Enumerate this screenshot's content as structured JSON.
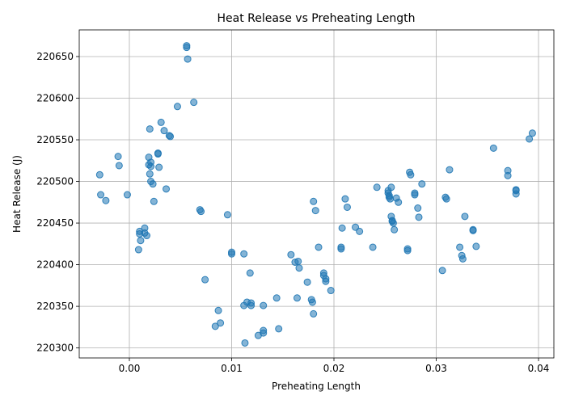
{
  "chart_data": {
    "type": "scatter",
    "title": "Heat Release vs Preheating Length",
    "xlabel": "Preheating Length",
    "ylabel": "Heat Release (J)",
    "xlim": [
      -0.0049,
      0.0415
    ],
    "ylim": [
      220288,
      220682
    ],
    "xticks": [
      0.0,
      0.01,
      0.02,
      0.03,
      0.04
    ],
    "xtick_labels": [
      "0.00",
      "0.01",
      "0.02",
      "0.03",
      "0.04"
    ],
    "yticks": [
      220300,
      220350,
      220400,
      220450,
      220500,
      220550,
      220600,
      220650
    ],
    "ytick_labels": [
      "220300",
      "220350",
      "220400",
      "220450",
      "220500",
      "220550",
      "220600",
      "220650"
    ],
    "grid": true,
    "color": "#1f77b4",
    "points": [
      [
        0.0056,
        220663
      ],
      [
        0.0056,
        220661
      ],
      [
        0.0057,
        220647
      ],
      [
        0.0063,
        220595
      ],
      [
        0.0047,
        220590
      ],
      [
        0.0031,
        220571
      ],
      [
        0.002,
        220563
      ],
      [
        0.0034,
        220561
      ],
      [
        0.0039,
        220555
      ],
      [
        0.004,
        220554
      ],
      [
        0.0028,
        220534
      ],
      [
        0.0028,
        220533
      ],
      [
        -0.0011,
        220530
      ],
      [
        0.0019,
        220529
      ],
      [
        -0.001,
        220519
      ],
      [
        0.0019,
        220520
      ],
      [
        0.0021,
        220518
      ],
      [
        0.0021,
        220523
      ],
      [
        0.0029,
        220517
      ],
      [
        -0.0029,
        220508
      ],
      [
        0.002,
        220509
      ],
      [
        0.0021,
        220500
      ],
      [
        0.0023,
        220497
      ],
      [
        0.0036,
        220491
      ],
      [
        -0.0028,
        220484
      ],
      [
        -0.0002,
        220484
      ],
      [
        -0.0023,
        220477
      ],
      [
        0.0024,
        220476
      ],
      [
        0.001,
        220440
      ],
      [
        0.001,
        220437
      ],
      [
        0.0015,
        220444
      ],
      [
        0.0015,
        220438
      ],
      [
        0.0017,
        220435
      ],
      [
        0.0011,
        220429
      ],
      [
        0.0009,
        220418
      ],
      [
        0.0069,
        220466
      ],
      [
        0.007,
        220464
      ],
      [
        0.0096,
        220460
      ],
      [
        0.01,
        220415
      ],
      [
        0.01,
        220413
      ],
      [
        0.0112,
        220413
      ],
      [
        0.0074,
        220382
      ],
      [
        0.0118,
        220390
      ],
      [
        0.0087,
        220345
      ],
      [
        0.0089,
        220330
      ],
      [
        0.0084,
        220326
      ],
      [
        0.0115,
        220355
      ],
      [
        0.0112,
        220351
      ],
      [
        0.0119,
        220351
      ],
      [
        0.0119,
        220354
      ],
      [
        0.0131,
        220351
      ],
      [
        0.0131,
        220321
      ],
      [
        0.0131,
        220318
      ],
      [
        0.0126,
        220315
      ],
      [
        0.0113,
        220306
      ],
      [
        0.0146,
        220323
      ],
      [
        0.0144,
        220360
      ],
      [
        0.0158,
        220412
      ],
      [
        0.0162,
        220403
      ],
      [
        0.0165,
        220404
      ],
      [
        0.0166,
        220396
      ],
      [
        0.0164,
        220360
      ],
      [
        0.0174,
        220379
      ],
      [
        0.0178,
        220358
      ],
      [
        0.0179,
        220355
      ],
      [
        0.018,
        220341
      ],
      [
        0.018,
        220476
      ],
      [
        0.0182,
        220465
      ],
      [
        0.0185,
        220421
      ],
      [
        0.019,
        220390
      ],
      [
        0.019,
        220387
      ],
      [
        0.0192,
        220383
      ],
      [
        0.0192,
        220380
      ],
      [
        0.0197,
        220369
      ],
      [
        0.0207,
        220421
      ],
      [
        0.0207,
        220419
      ],
      [
        0.0208,
        220444
      ],
      [
        0.0211,
        220479
      ],
      [
        0.0213,
        220469
      ],
      [
        0.0221,
        220445
      ],
      [
        0.0225,
        220440
      ],
      [
        0.0238,
        220421
      ],
      [
        0.0242,
        220493
      ],
      [
        0.0253,
        220489
      ],
      [
        0.0253,
        220486
      ],
      [
        0.0254,
        220483
      ],
      [
        0.0254,
        220481
      ],
      [
        0.0255,
        220479
      ],
      [
        0.0256,
        220493
      ],
      [
        0.0256,
        220458
      ],
      [
        0.0257,
        220452
      ],
      [
        0.0258,
        220450
      ],
      [
        0.0257,
        220453
      ],
      [
        0.0259,
        220442
      ],
      [
        0.0261,
        220480
      ],
      [
        0.0263,
        220475
      ],
      [
        0.0272,
        220419
      ],
      [
        0.0272,
        220417
      ],
      [
        0.0274,
        220511
      ],
      [
        0.0275,
        220508
      ],
      [
        0.0279,
        220486
      ],
      [
        0.0279,
        220484
      ],
      [
        0.0282,
        220468
      ],
      [
        0.0283,
        220457
      ],
      [
        0.0286,
        220497
      ],
      [
        0.0306,
        220393
      ],
      [
        0.0309,
        220481
      ],
      [
        0.031,
        220479
      ],
      [
        0.0313,
        220514
      ],
      [
        0.0323,
        220421
      ],
      [
        0.0325,
        220411
      ],
      [
        0.0326,
        220407
      ],
      [
        0.0328,
        220458
      ],
      [
        0.0336,
        220441
      ],
      [
        0.0336,
        220442
      ],
      [
        0.0339,
        220422
      ],
      [
        0.0356,
        220540
      ],
      [
        0.037,
        220513
      ],
      [
        0.037,
        220507
      ],
      [
        0.0378,
        220489
      ],
      [
        0.0378,
        220490
      ],
      [
        0.0378,
        220485
      ],
      [
        0.0391,
        220551
      ],
      [
        0.0394,
        220558
      ]
    ]
  }
}
